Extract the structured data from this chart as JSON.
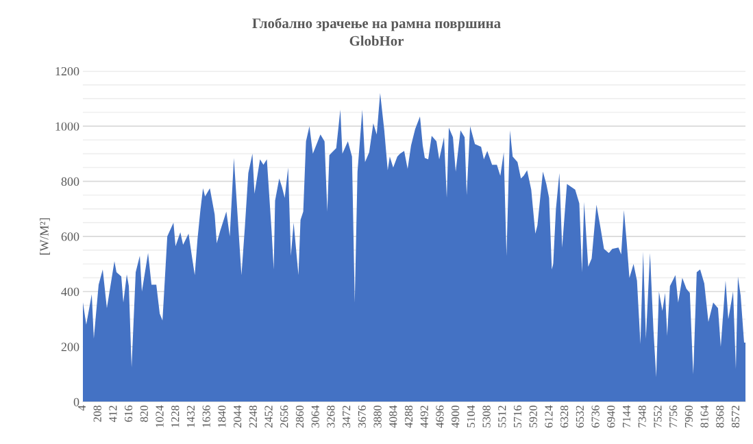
{
  "chart_data": {
    "type": "area",
    "title": "Глобално зрачење на рамна површина",
    "subtitle": "GlobHor",
    "ylabel": "[W/M²]",
    "x": [
      4,
      49,
      121,
      148,
      211,
      265,
      319,
      418,
      445,
      508,
      535,
      580,
      607,
      643,
      697,
      751,
      778,
      859,
      904,
      967,
      1012,
      1048,
      1111,
      1192,
      1219,
      1282,
      1318,
      1390,
      1435,
      1471,
      1507,
      1543,
      1579,
      1606,
      1669,
      1732,
      1759,
      1804,
      1885,
      1930,
      1984,
      2029,
      2083,
      2128,
      2173,
      2227,
      2254,
      2326,
      2371,
      2416,
      2479,
      2506,
      2524,
      2578,
      2614,
      2650,
      2695,
      2731,
      2767,
      2830,
      2857,
      2893,
      2929,
      2974,
      3019,
      3118,
      3172,
      3208,
      3235,
      3271,
      3325,
      3379,
      3406,
      3478,
      3532,
      3568,
      3604,
      3667,
      3703,
      3757,
      3811,
      3856,
      3901,
      3955,
      4000,
      4027,
      4072,
      4126,
      4162,
      4216,
      4261,
      4306,
      4360,
      4423,
      4459,
      4486,
      4531,
      4576,
      4639,
      4675,
      4738,
      4774,
      4801,
      4855,
      4891,
      4954,
      5008,
      5035,
      5080,
      5143,
      5224,
      5260,
      5305,
      5368,
      5431,
      5476,
      5521,
      5557,
      5602,
      5638,
      5701,
      5746,
      5782,
      5827,
      5881,
      5935,
      5962,
      6034,
      6079,
      6115,
      6151,
      6169,
      6205,
      6250,
      6286,
      6349,
      6457,
      6511,
      6547,
      6574,
      6628,
      6673,
      6736,
      6790,
      6835,
      6898,
      6943,
      7024,
      7060,
      7096,
      7132,
      7168,
      7222,
      7267,
      7312,
      7348,
      7384,
      7438,
      7483,
      7519,
      7555,
      7600,
      7636,
      7663,
      7699,
      7771,
      7807,
      7861,
      7915,
      7960,
      7996,
      8005,
      8050,
      8095,
      8149,
      8203,
      8266,
      8329,
      8365,
      8428,
      8464,
      8527,
      8563,
      8590,
      8626,
      8671,
      8689
    ],
    "series": [
      {
        "color": "#4472c4",
        "values": [
          363,
          280,
          390,
          230,
          425,
          480,
          340,
          510,
          470,
          455,
          360,
          462,
          420,
          125,
          470,
          530,
          400,
          540,
          425,
          425,
          320,
          295,
          600,
          650,
          565,
          615,
          570,
          610,
          525,
          460,
          590,
          690,
          775,
          745,
          775,
          680,
          575,
          620,
          690,
          600,
          885,
          690,
          460,
          635,
          830,
          900,
          755,
          880,
          860,
          880,
          615,
          480,
          730,
          810,
          780,
          740,
          850,
          530,
          650,
          460,
          660,
          690,
          945,
          1000,
          900,
          970,
          945,
          690,
          895,
          905,
          920,
          1060,
          900,
          945,
          890,
          360,
          835,
          1060,
          870,
          905,
          1010,
          970,
          1120,
          985,
          840,
          890,
          850,
          890,
          900,
          910,
          845,
          930,
          990,
          1035,
          930,
          885,
          880,
          965,
          945,
          880,
          960,
          740,
          995,
          960,
          835,
          985,
          960,
          750,
          1000,
          935,
          925,
          880,
          910,
          860,
          860,
          820,
          905,
          530,
          985,
          890,
          870,
          810,
          820,
          840,
          770,
          610,
          640,
          835,
          790,
          740,
          480,
          500,
          700,
          830,
          560,
          790,
          770,
          720,
          470,
          725,
          490,
          520,
          715,
          630,
          555,
          540,
          555,
          560,
          535,
          695,
          580,
          450,
          500,
          440,
          210,
          545,
          230,
          540,
          260,
          90,
          400,
          330,
          395,
          240,
          420,
          460,
          360,
          450,
          410,
          395,
          150,
          100,
          470,
          480,
          430,
          290,
          360,
          340,
          200,
          440,
          300,
          400,
          120,
          455,
          385,
          215,
          215
        ]
      }
    ],
    "xlim": [
      4,
      8689
    ],
    "xticks": [
      4,
      208,
      412,
      616,
      820,
      1024,
      1228,
      1432,
      1636,
      1840,
      2044,
      2248,
      2452,
      2656,
      2860,
      3064,
      3268,
      3472,
      3676,
      3880,
      4084,
      4288,
      4492,
      4696,
      4900,
      5104,
      5308,
      5512,
      5716,
      5920,
      6124,
      6328,
      6532,
      6736,
      6940,
      7144,
      7348,
      7552,
      7756,
      7960,
      8164,
      8368,
      8572
    ],
    "ylim": [
      0,
      1200
    ],
    "yticks": [
      0,
      200,
      {
        "value": 250,
        "label": null
      },
      {
        "value": 300,
        "label": null
      },
      {
        "value": 350,
        "label": null
      },
      400,
      {
        "value": 450,
        "label": null
      },
      {
        "value": 500,
        "label": null
      },
      {
        "value": 550,
        "label": null
      },
      600,
      {
        "value": 650,
        "label": null
      },
      {
        "value": 700,
        "label": null
      },
      {
        "value": 750,
        "label": null
      },
      800,
      {
        "value": 850,
        "label": null
      },
      {
        "value": 900,
        "label": null
      },
      {
        "value": 950,
        "label": null
      },
      1000,
      {
        "value": 1050,
        "label": null
      },
      {
        "value": 1100,
        "label": null
      },
      {
        "value": 1150,
        "label": null
      },
      1200
    ],
    "grid": "y"
  }
}
